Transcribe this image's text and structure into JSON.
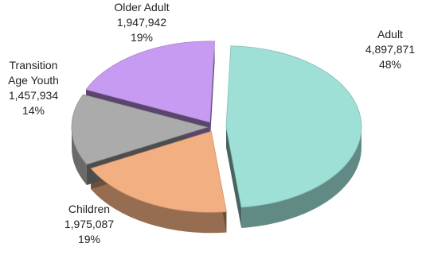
{
  "chart_data": {
    "type": "pie",
    "style": "3d-exploded",
    "categories": [
      "Adult",
      "Children",
      "Transition Age Youth",
      "Older Adult"
    ],
    "values": [
      4897871,
      1975087,
      1457934,
      1947942
    ],
    "percent_labels": [
      "48%",
      "19%",
      "14%",
      "19%"
    ],
    "value_labels": [
      "4,897,871",
      "1,975,087",
      "1,457,934",
      "1,947,942"
    ],
    "label_lines": [
      [
        "Adult"
      ],
      [
        "Children"
      ],
      [
        "Transition",
        "Age Youth"
      ],
      [
        "Older Adult"
      ]
    ],
    "colors": [
      "#9EDFD6",
      "#F2AF82",
      "#ABABAB",
      "#C89BF3"
    ],
    "legend": "none"
  }
}
